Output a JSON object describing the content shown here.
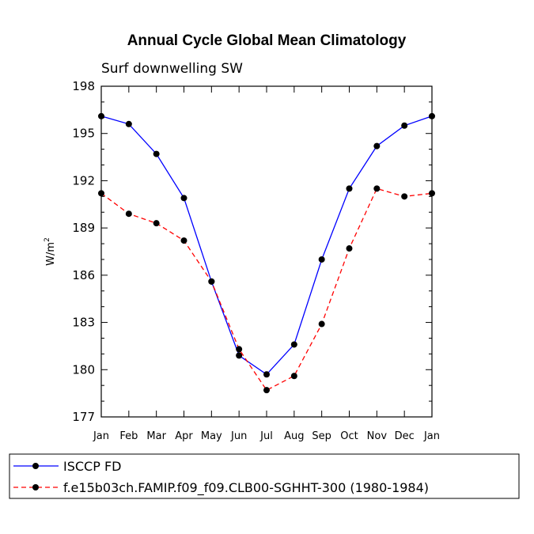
{
  "chart_data": {
    "type": "line",
    "title": "Annual Cycle Global Mean Climatology",
    "subtitle": "Surf downwelling SW",
    "xlabel": "",
    "ylabel": "W/m",
    "ylabel_superscript": "2",
    "ylim": [
      177,
      198
    ],
    "yticks": [
      "177",
      "180",
      "183",
      "186",
      "189",
      "192",
      "195",
      "198"
    ],
    "categories": [
      "Jan",
      "Feb",
      "Mar",
      "Apr",
      "May",
      "Jun",
      "Jul",
      "Aug",
      "Sep",
      "Oct",
      "Nov",
      "Dec",
      "Jan"
    ],
    "series": [
      {
        "name": "ISCCP FD",
        "color": "#0000ff",
        "dashed": false,
        "values": [
          196.1,
          195.6,
          193.7,
          190.9,
          185.6,
          180.9,
          179.7,
          181.6,
          187.0,
          191.5,
          194.2,
          195.5,
          196.1
        ]
      },
      {
        "name": "f.e15b03ch.FAMIP.f09_f09.CLB00-SGHHT-300 (1980-1984)",
        "color": "#ff0000",
        "dashed": true,
        "values": [
          191.2,
          189.9,
          189.3,
          188.2,
          185.6,
          181.3,
          178.7,
          179.6,
          182.9,
          187.7,
          191.5,
          191.0,
          191.2
        ]
      }
    ],
    "legend_position": "bottom"
  }
}
